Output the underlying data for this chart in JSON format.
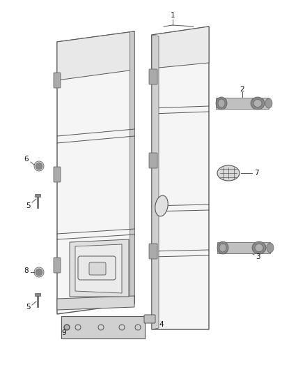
{
  "background_color": "#ffffff",
  "fig_width": 4.38,
  "fig_height": 5.33,
  "dpi": 100,
  "line_color": "#555555",
  "label_fontsize": 7.5
}
